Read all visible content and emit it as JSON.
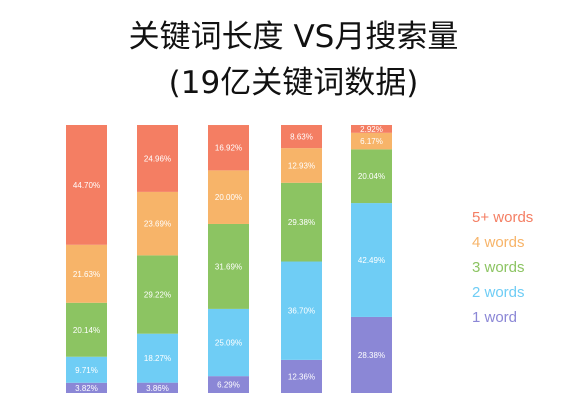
{
  "chart_data": {
    "type": "bar",
    "stacked": true,
    "percent_stacked": true,
    "title": "关键词长度 VS月搜索量",
    "subtitle": "(19亿关键词数据)",
    "xlabel": "",
    "ylabel": "",
    "ylim": [
      0,
      100
    ],
    "grid": false,
    "legend_position": "right",
    "categories": [
      "",
      "",
      "",
      "",
      ""
    ],
    "series": [
      {
        "name": "1 word",
        "color": "#8b87d6",
        "values": [
          3.82,
          3.86,
          6.29,
          12.36,
          28.38
        ],
        "labels": [
          "3.82%",
          "3.86%",
          "6.29%",
          "12.36%",
          "28.38%"
        ]
      },
      {
        "name": "2 words",
        "color": "#6fcdf5",
        "values": [
          9.71,
          18.27,
          25.09,
          36.7,
          42.49
        ],
        "labels": [
          "9.71%",
          "18.27%",
          "25.09%",
          "36.70%",
          "42.49%"
        ]
      },
      {
        "name": "3 words",
        "color": "#8cc462",
        "values": [
          20.14,
          29.22,
          31.69,
          29.38,
          20.04
        ],
        "labels": [
          "20.14%",
          "29.22%",
          "31.69%",
          "29.38%",
          "20.04%"
        ]
      },
      {
        "name": "4 words",
        "color": "#f7b469",
        "values": [
          21.63,
          23.69,
          20.0,
          12.93,
          6.17
        ],
        "labels": [
          "21.63%",
          "23.69%",
          "20.00%",
          "12.93%",
          "6.17%"
        ]
      },
      {
        "name": "5+ words",
        "color": "#f47e63",
        "values": [
          44.7,
          24.96,
          16.92,
          8.63,
          2.92
        ],
        "labels": [
          "44.70%",
          "24.96%",
          "16.92%",
          "8.63%",
          "2.92%"
        ]
      }
    ]
  }
}
